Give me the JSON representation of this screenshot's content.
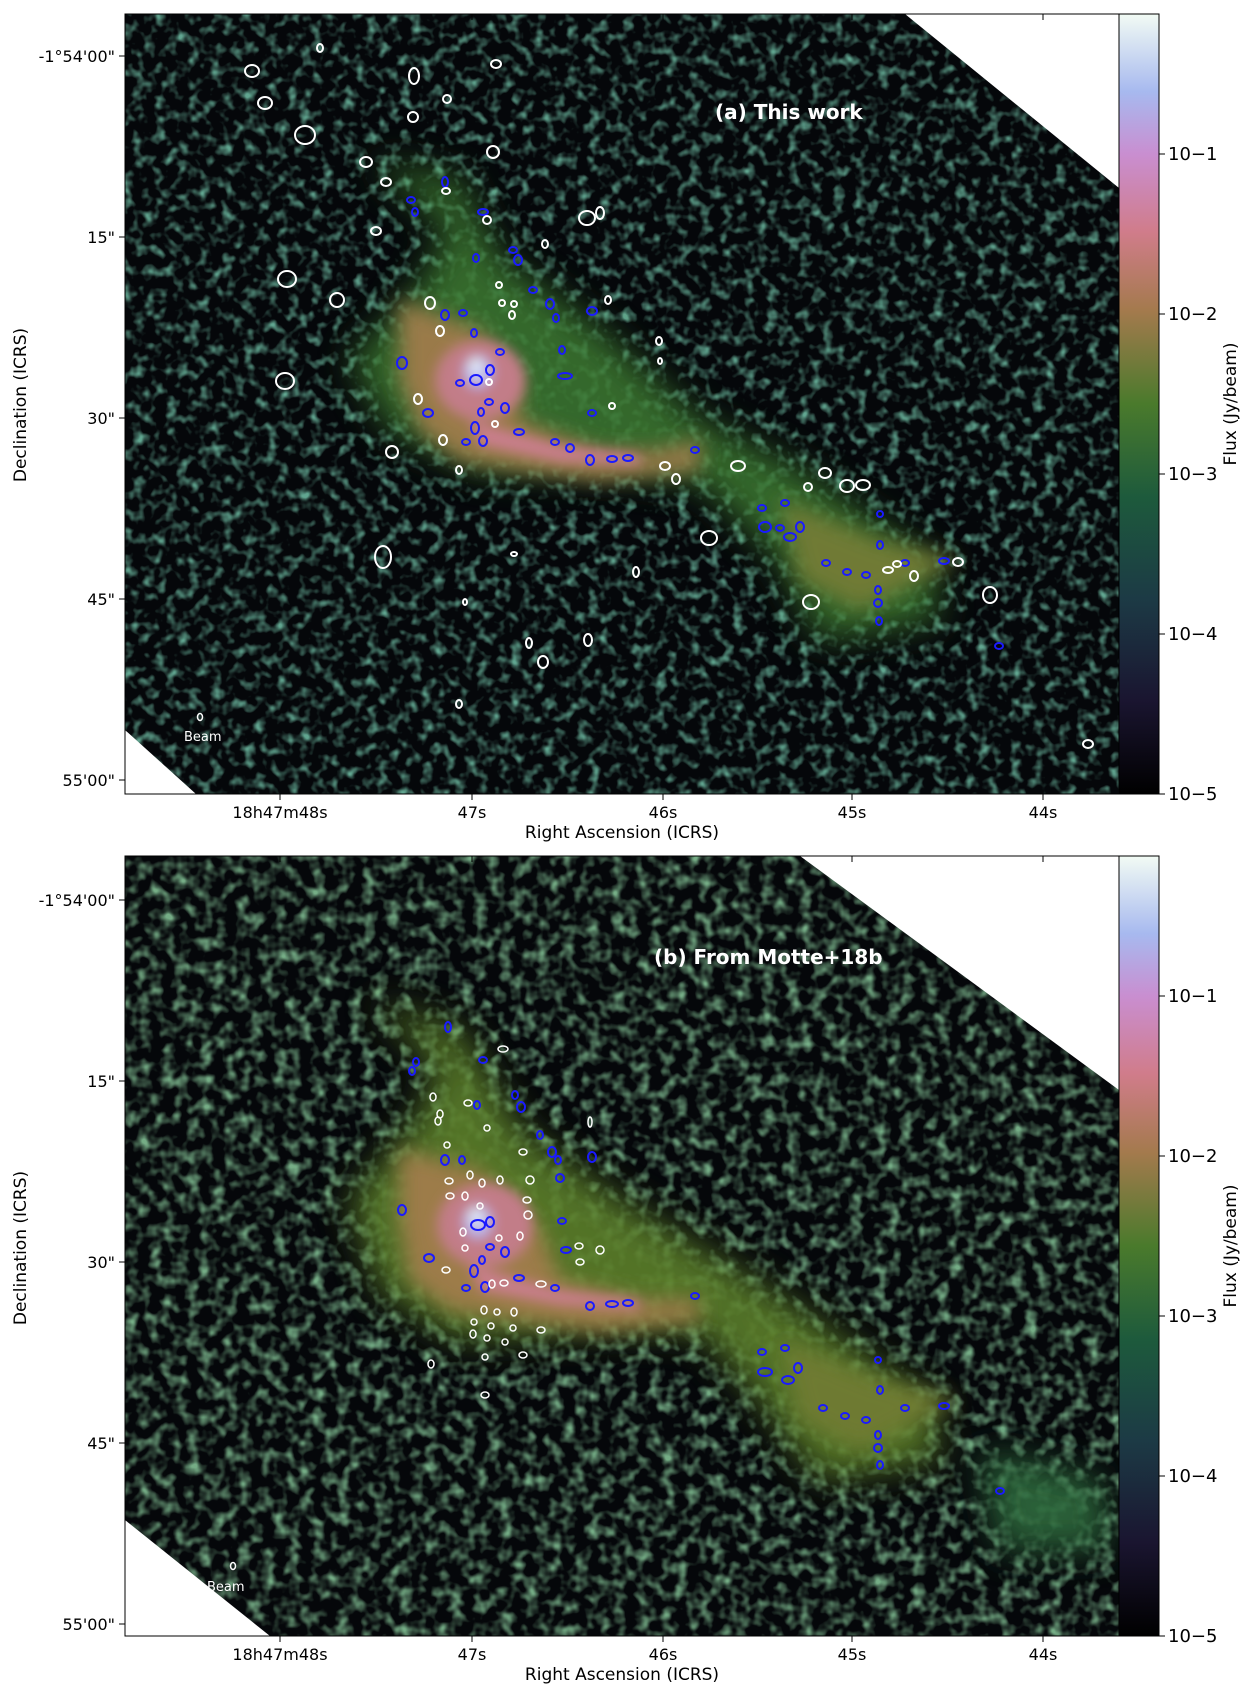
{
  "panels": [
    {
      "title": "(a) This work",
      "beam_label": "Beam",
      "xlabel": "Right Ascension (ICRS)",
      "ylabel": "Declination (ICRS)",
      "colorbar_label": "Flux (Jy/beam)",
      "yticks": [
        "-1°54'00\"",
        "15\"",
        "30\"",
        "45\"",
        "55'00\""
      ],
      "xticks": [
        "18h47m48s",
        "47s",
        "46s",
        "45s",
        "44s"
      ],
      "cbar_ticks": [
        "10−1",
        "10−2",
        "10−3",
        "10−4",
        "10−5"
      ]
    },
    {
      "title": "(b) From Motte+18b",
      "beam_label": "Beam",
      "xlabel": "Right Ascension (ICRS)",
      "ylabel": "Declination (ICRS)",
      "colorbar_label": "Flux (Jy/beam)",
      "yticks": [
        "-1°54'00\"",
        "15\"",
        "30\"",
        "45\"",
        "55'00\""
      ],
      "xticks": [
        "18h47m48s",
        "47s",
        "46s",
        "45s",
        "44s"
      ],
      "cbar_ticks": [
        "10−1",
        "10−2",
        "10−3",
        "10−4",
        "10−5"
      ]
    }
  ],
  "colors": {
    "blue_sources": "#1a1aff",
    "white_sources": "#ffffff",
    "background": "#05070a"
  },
  "colormap": "cubehelix"
}
